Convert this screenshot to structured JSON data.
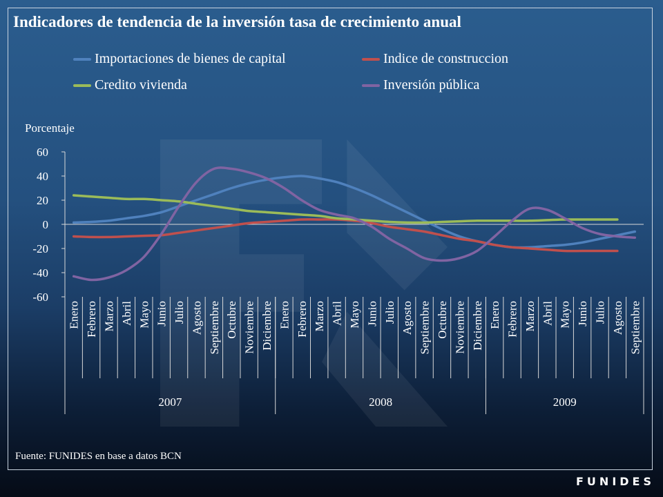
{
  "chart_data": {
    "type": "line",
    "title": "Indicadores de tendencia de la inversión tasa de crecimiento anual",
    "ylabel": "Porcentaje",
    "ylim": [
      -60,
      60
    ],
    "yticks": [
      "60",
      "40",
      "20",
      "0",
      "-20",
      "-40",
      "-60"
    ],
    "legend_placement": "top",
    "categories": [
      "Enero",
      "Febrero",
      "Marzo",
      "Abril",
      "Mayo",
      "Junio",
      "Julio",
      "Agosto",
      "Septiembre",
      "Octubre",
      "Noviembre",
      "Diciembre",
      "Enero",
      "Febrero",
      "Marzo",
      "Abril",
      "Mayo",
      "Junio",
      "Julio",
      "Agosto",
      "Septiembre",
      "Octubre",
      "Noviembre",
      "Diciembre",
      "Enero",
      "Febrero",
      "Marzo",
      "Abril",
      "Mayo",
      "Junio",
      "Julio",
      "Agosto",
      "Septiembre"
    ],
    "years": [
      {
        "label": "2007",
        "months": 12
      },
      {
        "label": "2008",
        "months": 12
      },
      {
        "label": "2009",
        "months": 9
      }
    ],
    "series": [
      {
        "name": "Importaciones de bienes de capital",
        "color": "#4f81bd",
        "values": [
          1.5,
          2,
          3,
          5,
          7,
          10,
          15,
          20,
          25,
          30,
          34,
          37,
          39,
          40,
          38,
          35,
          30,
          24,
          17,
          10,
          3,
          -4,
          -10,
          -14,
          -17,
          -19,
          -19,
          -18,
          -17,
          -15,
          -12,
          -9,
          -6
        ]
      },
      {
        "name": "Indice de construccion",
        "color": "#c0504d",
        "values": [
          -10,
          -10.5,
          -10.5,
          -10,
          -9.5,
          -9,
          -7,
          -5,
          -3,
          -1,
          1,
          2,
          3,
          4,
          4,
          4,
          3,
          1,
          -2,
          -4,
          -6,
          -9,
          -12,
          -14,
          -17,
          -19,
          -20,
          -21,
          -22,
          -22,
          -22,
          -22,
          null
        ]
      },
      {
        "name": "Credito vivienda",
        "color": "#9bbb59",
        "values": [
          24,
          23,
          22,
          21,
          21,
          20,
          19,
          17,
          15,
          13,
          11,
          10,
          9,
          8,
          7,
          5,
          4,
          3,
          2,
          1.5,
          1.5,
          2,
          2.5,
          3,
          3,
          3,
          3,
          3.5,
          4,
          4,
          4,
          4,
          null
        ]
      },
      {
        "name": "Inversión pública",
        "color": "#8064a2",
        "values": [
          -43,
          -46,
          -44,
          -38,
          -27,
          -8,
          15,
          35,
          46,
          46,
          43,
          38,
          30,
          20,
          12,
          8,
          5,
          -2,
          -12,
          -20,
          -28,
          -30,
          -28,
          -22,
          -10,
          3,
          13,
          12,
          5,
          -3,
          -8,
          -10,
          -11
        ]
      }
    ]
  },
  "source": "Fuente: FUNIDES en base a datos BCN",
  "brand": "FUNIDES"
}
